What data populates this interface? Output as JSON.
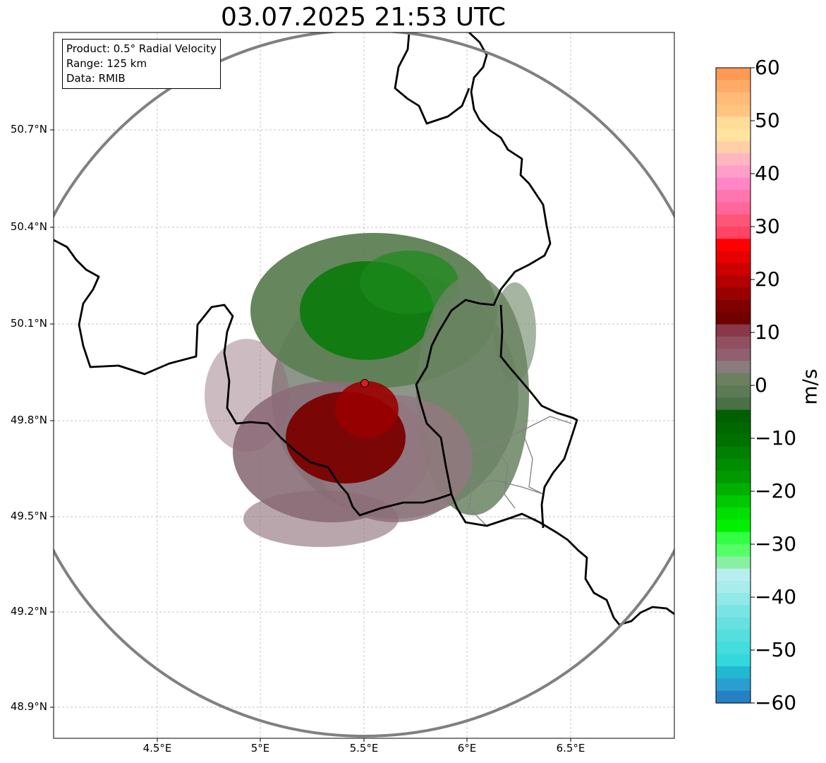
{
  "title": "03.07.2025 21:53 UTC",
  "info": {
    "product": "Product: 0.5° Radial Velocity",
    "range": "Range: 125 km",
    "data": "Data: RMIB"
  },
  "map": {
    "lat_ticks": [
      "50.7°N",
      "50.4°N",
      "50.1°N",
      "49.8°N",
      "49.5°N",
      "49.2°N",
      "48.9°N"
    ],
    "lon_ticks": [
      "4.5°E",
      "5°E",
      "5.5°E",
      "6°E",
      "6.5°E"
    ],
    "radar_site_color": "#e31a1c",
    "range_ring_color": "#808080",
    "border_color": "#000000",
    "gridline_color": "#b0b0b0"
  },
  "colorbar": {
    "unit": "m/s",
    "ticks": [
      "60",
      "50",
      "40",
      "30",
      "20",
      "10",
      "0",
      "−10",
      "−20",
      "−30",
      "−40",
      "−50",
      "−60"
    ],
    "range": [
      -60,
      60
    ],
    "colors_top_to_bottom": [
      "#ff9955",
      "#ffaa66",
      "#ffbb77",
      "#ffc47f",
      "#ffdd99",
      "#ffe4a0",
      "#ffcfa8",
      "#ffb6c1",
      "#ff9ec8",
      "#ff85c7",
      "#ff75b0",
      "#ff6699",
      "#ff5577",
      "#ff4466",
      "#ff0000",
      "#e60000",
      "#cc0000",
      "#b30000",
      "#990000",
      "#800000",
      "#700000",
      "#883848",
      "#905060",
      "#906070",
      "#8a7c7c",
      "#6c8060",
      "#5c7a54",
      "#4a7045",
      "#006000",
      "#006800",
      "#007000",
      "#008000",
      "#008c00",
      "#009a00",
      "#00b000",
      "#00c800",
      "#00e000",
      "#00f000",
      "#33ff44",
      "#55ff66",
      "#88f0a0",
      "#b8eef0",
      "#a8ecec",
      "#90e8e8",
      "#7ae4e4",
      "#66e0e0",
      "#55dede",
      "#44dcdc",
      "#33d8dc",
      "#22b8d0",
      "#2a9ed0",
      "#2680c4"
    ]
  }
}
